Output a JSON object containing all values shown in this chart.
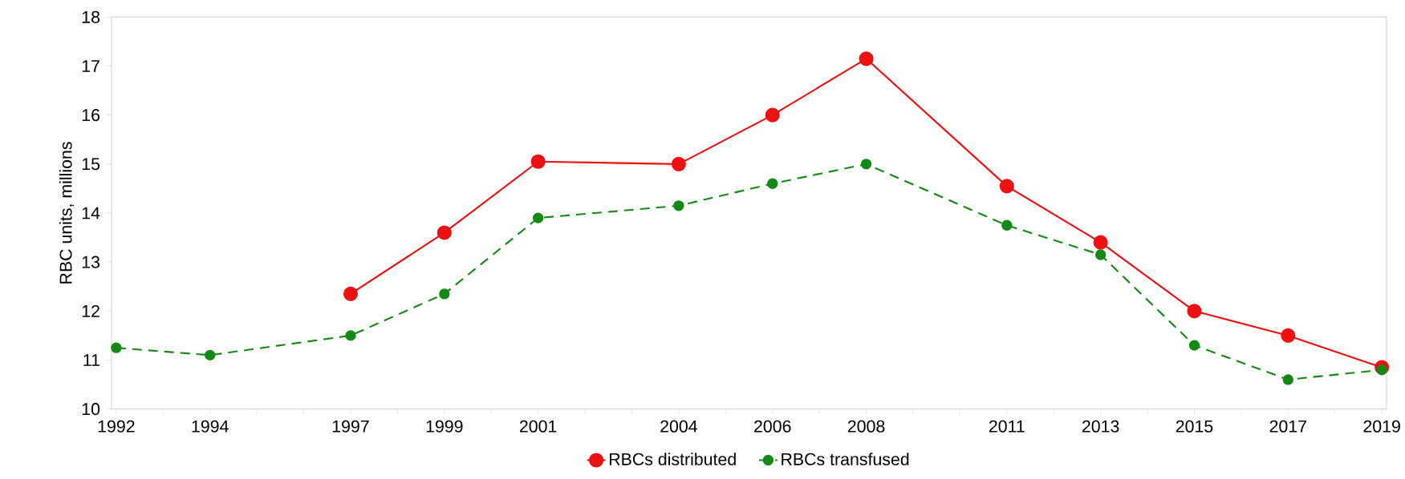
{
  "chart_data": {
    "type": "line",
    "ylabel": "RBC units, millions",
    "x": [
      1992,
      1994,
      1997,
      1999,
      2001,
      2004,
      2006,
      2008,
      2011,
      2013,
      2015,
      2017,
      2019
    ],
    "series": [
      {
        "name": "RBCs distributed",
        "color": "#ee1111",
        "line_style": "solid",
        "values": [
          null,
          null,
          12.35,
          13.6,
          15.05,
          15.0,
          16.0,
          17.15,
          14.55,
          13.4,
          12.0,
          11.5,
          10.85
        ]
      },
      {
        "name": "RBCs transfused",
        "color": "#138a13",
        "line_style": "dashed",
        "values": [
          11.25,
          11.1,
          11.5,
          12.35,
          13.9,
          14.15,
          14.6,
          15.0,
          13.75,
          13.15,
          11.3,
          10.6,
          10.8
        ]
      }
    ],
    "xlim": [
      1991.9,
      2019.1
    ],
    "xticks": [
      1992,
      {
        "value": 1993,
        "label": null
      },
      1994,
      {
        "value": 1995,
        "label": null
      },
      {
        "value": 1996,
        "label": null
      },
      1997,
      {
        "value": 1998,
        "label": null
      },
      1999,
      {
        "value": 2000,
        "label": null
      },
      2001,
      {
        "value": 2002,
        "label": null
      },
      {
        "value": 2003,
        "label": null
      },
      2004,
      {
        "value": 2005,
        "label": null
      },
      2006,
      {
        "value": 2007,
        "label": null
      },
      2008,
      {
        "value": 2009,
        "label": null
      },
      {
        "value": 2010,
        "label": null
      },
      2011,
      {
        "value": 2012,
        "label": null
      },
      2013,
      {
        "value": 2014,
        "label": null
      },
      2015,
      {
        "value": 2016,
        "label": null
      },
      2017,
      {
        "value": 2018,
        "label": null
      },
      2019
    ],
    "ylim": [
      10,
      18
    ],
    "yticks": [
      10,
      11,
      12,
      13,
      14,
      15,
      16,
      17,
      18
    ],
    "grid": false,
    "legend": "bottom",
    "marker": "circle"
  }
}
